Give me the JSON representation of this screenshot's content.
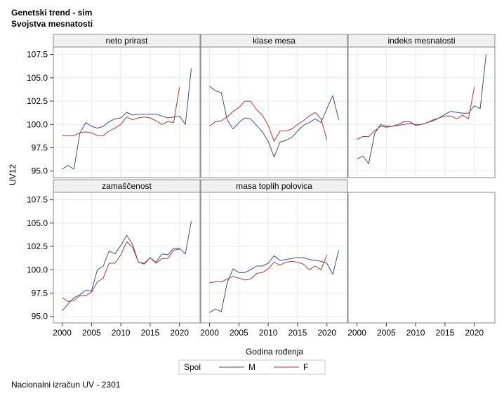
{
  "titles": {
    "line1": "Genetski trend - sim",
    "line2": "Svojstva mesnatosti"
  },
  "footnote": "Nacionalni izračun UV - 2301",
  "colors": {
    "M": "#3c4c8c",
    "F": "#a83a2e",
    "grid": "#e8e8e8",
    "header_bg": "#f0f0f0",
    "frame": "#8a8a8a"
  },
  "chart_data": {
    "type": "line",
    "ylabel": "UV12",
    "xlabel": "Godina rođenja",
    "xlim": [
      1998.5,
      2023.5
    ],
    "ylim": [
      94.3,
      108.3
    ],
    "xticks": [
      2000,
      2005,
      2010,
      2015,
      2020
    ],
    "yticks": [
      95.0,
      97.5,
      100.0,
      102.5,
      105.0,
      107.5
    ],
    "ytick_labels": [
      "95.0",
      "97.5",
      "100.0",
      "102.5",
      "105.0",
      "107.5"
    ],
    "grid": true,
    "legend": {
      "title": "Spol",
      "placement": "bottom-center",
      "entries": [
        {
          "key": "M",
          "label": "M"
        },
        {
          "key": "F",
          "label": "F"
        }
      ]
    },
    "panels": [
      {
        "title": "neto prirast",
        "series": [
          {
            "name": "M",
            "x": [
              2000,
              2001,
              2002,
              2003,
              2004,
              2005,
              2006,
              2007,
              2008,
              2009,
              2010,
              2011,
              2012,
              2013,
              2014,
              2015,
              2016,
              2017,
              2018,
              2019,
              2020,
              2021,
              2022
            ],
            "values": [
              95.2,
              95.6,
              95.2,
              99.0,
              100.2,
              99.8,
              99.6,
              99.8,
              100.3,
              100.6,
              100.7,
              101.3,
              101.0,
              101.1,
              101.1,
              101.1,
              101.1,
              100.9,
              100.7,
              100.8,
              100.9,
              100.0,
              106.0
            ]
          },
          {
            "name": "F",
            "x": [
              2000,
              2001,
              2002,
              2003,
              2004,
              2005,
              2006,
              2007,
              2008,
              2009,
              2010,
              2011,
              2012,
              2013,
              2014,
              2015,
              2016,
              2017,
              2018,
              2019,
              2020
            ],
            "values": [
              98.8,
              98.8,
              98.8,
              99.1,
              99.2,
              99.1,
              98.8,
              98.8,
              99.3,
              99.6,
              100.0,
              100.8,
              100.5,
              100.7,
              100.8,
              100.7,
              100.4,
              100.0,
              100.3,
              100.2,
              104.0
            ]
          }
        ]
      },
      {
        "title": "klase mesa",
        "series": [
          {
            "name": "M",
            "x": [
              2000,
              2001,
              2002,
              2003,
              2004,
              2005,
              2006,
              2007,
              2008,
              2009,
              2010,
              2011,
              2012,
              2013,
              2014,
              2015,
              2016,
              2017,
              2018,
              2019,
              2020,
              2021,
              2022
            ],
            "values": [
              104.1,
              103.6,
              103.4,
              100.5,
              99.5,
              100.2,
              100.7,
              100.6,
              99.9,
              99.2,
              98.2,
              96.5,
              98.1,
              98.3,
              98.6,
              99.3,
              99.9,
              100.2,
              100.6,
              100.2,
              101.7,
              103.1,
              100.5
            ]
          },
          {
            "name": "F",
            "x": [
              2000,
              2001,
              2002,
              2003,
              2004,
              2005,
              2006,
              2007,
              2008,
              2009,
              2010,
              2011,
              2012,
              2013,
              2014,
              2015,
              2016,
              2017,
              2018,
              2019,
              2020
            ],
            "values": [
              99.8,
              100.3,
              100.4,
              100.8,
              101.4,
              101.8,
              102.5,
              102.5,
              101.6,
              101.0,
              99.9,
              98.2,
              99.3,
              99.3,
              99.5,
              100.0,
              100.4,
              100.9,
              101.3,
              100.6,
              98.3
            ]
          }
        ]
      },
      {
        "title": "indeks mesnatosti",
        "series": [
          {
            "name": "M",
            "x": [
              2000,
              2001,
              2002,
              2003,
              2004,
              2005,
              2006,
              2007,
              2008,
              2009,
              2010,
              2011,
              2012,
              2013,
              2014,
              2015,
              2016,
              2017,
              2018,
              2019,
              2020,
              2021,
              2022
            ],
            "values": [
              96.3,
              96.6,
              95.8,
              99.0,
              100.0,
              99.8,
              99.8,
              100.0,
              100.3,
              100.3,
              99.9,
              100.0,
              100.2,
              100.4,
              100.7,
              101.1,
              101.4,
              101.3,
              101.2,
              101.2,
              102.0,
              101.7,
              107.5
            ]
          },
          {
            "name": "F",
            "x": [
              2000,
              2001,
              2002,
              2003,
              2004,
              2005,
              2006,
              2007,
              2008,
              2009,
              2010,
              2011,
              2012,
              2013,
              2014,
              2015,
              2016,
              2017,
              2018,
              2019,
              2020
            ],
            "values": [
              98.4,
              98.7,
              98.7,
              99.3,
              99.8,
              99.7,
              99.8,
              99.9,
              100.0,
              100.1,
              100.0,
              100.0,
              100.2,
              100.5,
              100.7,
              100.9,
              100.9,
              100.6,
              101.0,
              100.6,
              104.0
            ]
          }
        ]
      },
      {
        "title": "zamaščenost",
        "series": [
          {
            "name": "M",
            "x": [
              2000,
              2001,
              2002,
              2003,
              2004,
              2005,
              2006,
              2007,
              2008,
              2009,
              2010,
              2011,
              2012,
              2013,
              2014,
              2015,
              2016,
              2017,
              2018,
              2019,
              2020,
              2021,
              2022
            ],
            "values": [
              95.6,
              96.3,
              97.0,
              97.3,
              97.8,
              97.7,
              100.0,
              100.4,
              102.0,
              101.7,
              102.6,
              103.7,
              102.7,
              100.8,
              100.7,
              101.3,
              100.8,
              101.7,
              101.6,
              102.3,
              102.3,
              101.7,
              105.2
            ]
          },
          {
            "name": "F",
            "x": [
              2000,
              2001,
              2002,
              2003,
              2004,
              2005,
              2006,
              2007,
              2008,
              2009,
              2010,
              2011,
              2012,
              2013,
              2014,
              2015,
              2016,
              2017,
              2018,
              2019,
              2020
            ],
            "values": [
              97.0,
              96.6,
              96.7,
              97.2,
              97.2,
              97.6,
              98.7,
              99.1,
              100.7,
              100.7,
              101.6,
              103.0,
              102.4,
              100.8,
              100.6,
              101.3,
              100.7,
              101.2,
              101.2,
              102.1,
              102.2
            ]
          }
        ]
      },
      {
        "title": "masa toplih polovica",
        "series": [
          {
            "name": "M",
            "x": [
              2000,
              2001,
              2002,
              2003,
              2004,
              2005,
              2006,
              2007,
              2008,
              2009,
              2010,
              2011,
              2012,
              2013,
              2014,
              2015,
              2016,
              2017,
              2018,
              2019,
              2020,
              2021,
              2022
            ],
            "values": [
              95.4,
              95.8,
              95.5,
              98.6,
              100.1,
              99.7,
              99.7,
              100.0,
              100.4,
              100.4,
              100.7,
              101.5,
              101.0,
              101.1,
              101.2,
              101.3,
              101.3,
              101.1,
              101.0,
              100.9,
              100.7,
              99.5,
              102.1
            ]
          },
          {
            "name": "F",
            "x": [
              2000,
              2001,
              2002,
              2003,
              2004,
              2005,
              2006,
              2007,
              2008,
              2009,
              2010,
              2011,
              2012,
              2013,
              2014,
              2015,
              2016,
              2017,
              2018,
              2019,
              2020
            ],
            "values": [
              98.6,
              98.7,
              98.7,
              99.0,
              99.3,
              99.1,
              98.9,
              99.0,
              99.6,
              99.7,
              100.1,
              100.8,
              100.5,
              100.8,
              100.9,
              100.8,
              100.6,
              100.0,
              100.4,
              100.0,
              101.6
            ]
          }
        ]
      }
    ]
  }
}
